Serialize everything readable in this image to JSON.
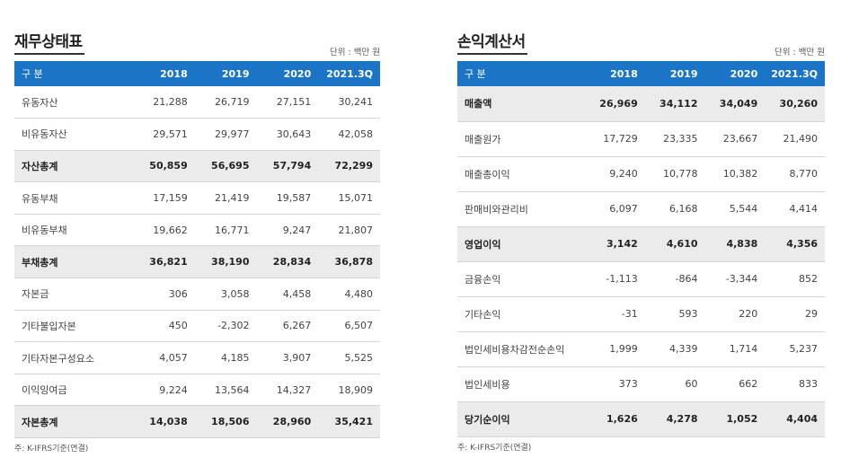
{
  "balance_sheet": {
    "title": "재무상태표",
    "unit": "단위 : 백만 원",
    "headers": [
      "구 분",
      "2018",
      "2019",
      "2020",
      "2021.3Q"
    ],
    "rows": [
      {
        "label": "유동자산",
        "values": [
          "21,288",
          "26,719",
          "27,151",
          "30,241"
        ],
        "total": false
      },
      {
        "label": "비유동자산",
        "values": [
          "29,571",
          "29,977",
          "30,643",
          "42,058"
        ],
        "total": false
      },
      {
        "label": "자산총계",
        "values": [
          "50,859",
          "56,695",
          "57,794",
          "72,299"
        ],
        "total": true
      },
      {
        "label": "유동부채",
        "values": [
          "17,159",
          "21,419",
          "19,587",
          "15,071"
        ],
        "total": false
      },
      {
        "label": "비유동부채",
        "values": [
          "19,662",
          "16,771",
          "9,247",
          "21,807"
        ],
        "total": false
      },
      {
        "label": "부채총계",
        "values": [
          "36,821",
          "38,190",
          "28,834",
          "36,878"
        ],
        "total": true
      },
      {
        "label": "자본금",
        "values": [
          "306",
          "3,058",
          "4,458",
          "4,480"
        ],
        "total": false
      },
      {
        "label": "기타불입자본",
        "values": [
          "450",
          "-2,302",
          "6,267",
          "6,507"
        ],
        "total": false
      },
      {
        "label": "기타자본구성요소",
        "values": [
          "4,057",
          "4,185",
          "3,907",
          "5,525"
        ],
        "total": false
      },
      {
        "label": "이익잉여금",
        "values": [
          "9,224",
          "13,564",
          "14,327",
          "18,909"
        ],
        "total": false
      },
      {
        "label": "자본총계",
        "values": [
          "14,038",
          "18,506",
          "28,960",
          "35,421"
        ],
        "total": true
      }
    ],
    "note": "주: K-IFRS기준(연결)"
  },
  "income_statement": {
    "title": "손익계산서",
    "unit": "단위 : 백만 원",
    "headers": [
      "구 분",
      "2018",
      "2019",
      "2020",
      "2021.3Q"
    ],
    "rows": [
      {
        "label": "매출액",
        "values": [
          "26,969",
          "34,112",
          "34,049",
          "30,260"
        ],
        "total": true
      },
      {
        "label": "매출원가",
        "values": [
          "17,729",
          "23,335",
          "23,667",
          "21,490"
        ],
        "total": false
      },
      {
        "label": "매출총이익",
        "values": [
          "9,240",
          "10,778",
          "10,382",
          "8,770"
        ],
        "total": false
      },
      {
        "label": "판매비와관리비",
        "values": [
          "6,097",
          "6,168",
          "5,544",
          "4,414"
        ],
        "total": false
      },
      {
        "label": "영업이익",
        "values": [
          "3,142",
          "4,610",
          "4,838",
          "4,356"
        ],
        "total": true
      },
      {
        "label": "금융손익",
        "values": [
          "-1,113",
          "-864",
          "-3,344",
          "852"
        ],
        "total": false
      },
      {
        "label": "기타손익",
        "values": [
          "-31",
          "593",
          "220",
          "29"
        ],
        "total": false
      },
      {
        "label": "법인세비용차감전순손익",
        "values": [
          "1,999",
          "4,339",
          "1,714",
          "5,237"
        ],
        "total": false
      },
      {
        "label": "법인세비용",
        "values": [
          "373",
          "60",
          "662",
          "833"
        ],
        "total": false
      },
      {
        "label": "당기순이익",
        "values": [
          "1,626",
          "4,278",
          "1,052",
          "4,404"
        ],
        "total": true
      }
    ],
    "note": "주: K-IFRS기준(연결)"
  },
  "colors": {
    "header_bg": "#1b74c5",
    "total_row_bg": "#ebebeb"
  }
}
